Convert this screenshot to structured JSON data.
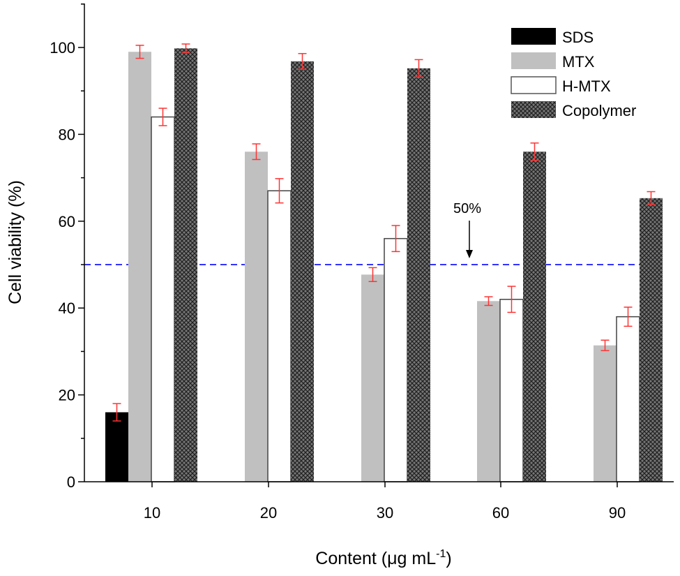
{
  "chart_data": {
    "type": "bar",
    "title": "",
    "xlabel": "Content (μg mL",
    "xlabel_sup": "-1",
    "xlabel_close": ")",
    "ylabel": "Cell viability  (%)",
    "ylim": [
      0,
      110
    ],
    "yticks": [
      0,
      20,
      40,
      60,
      80,
      100
    ],
    "categories": [
      "10",
      "20",
      "30",
      "60",
      "90"
    ],
    "series": [
      {
        "name": "SDS",
        "color": "#000000",
        "values": [
          16,
          null,
          null,
          null,
          null
        ],
        "errors": [
          2,
          null,
          null,
          null,
          null
        ]
      },
      {
        "name": "MTX",
        "color": "#c0c0c0",
        "values": [
          99,
          76,
          47.7,
          41.6,
          31.4
        ],
        "errors": [
          1.5,
          1.8,
          1.6,
          1.0,
          1.2
        ]
      },
      {
        "name": "H-MTX",
        "color": "#ffffff",
        "values": [
          84,
          67,
          56,
          42,
          38
        ],
        "errors": [
          2,
          2.8,
          3,
          3,
          2.2
        ]
      },
      {
        "name": "Copolymer",
        "color": "#555555",
        "values": [
          99.8,
          96.8,
          95.2,
          76,
          65.3
        ],
        "errors": [
          1,
          1.8,
          2,
          2,
          1.5
        ]
      }
    ],
    "reference_line": {
      "value": 50,
      "color": "#3333ff",
      "label": "50%"
    },
    "error_color": "#ff3333",
    "legend": "top-right"
  }
}
